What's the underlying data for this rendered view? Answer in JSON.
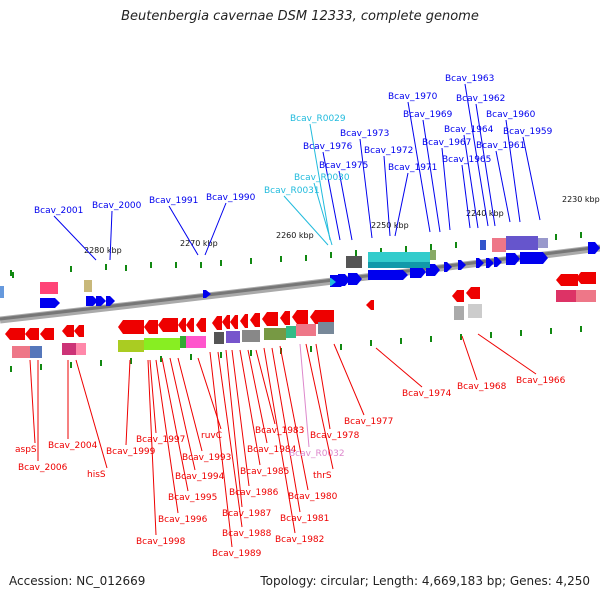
{
  "title": "Beutenbergia cavernae DSM 12333, complete genome",
  "footer": {
    "accession": "Accession: NC_012669",
    "summary": "Topology: circular; Length: 4,669,183 bp; Genes: 4,250"
  },
  "colors": {
    "forward_cds": "#0000ee",
    "reverse_cds": "#ee0000",
    "trna_forward": "#22bbdd",
    "trna_reverse": "#dd88cc",
    "backbone": "#777777",
    "tick": "#118811"
  },
  "scale_labels": [
    {
      "id": "kbp-2280",
      "text": "2280 kbp"
    },
    {
      "id": "kbp-2270",
      "text": "2270 kbp"
    },
    {
      "id": "kbp-2260",
      "text": "2260 kbp"
    },
    {
      "id": "kbp-2250",
      "text": "2250 kbp"
    },
    {
      "id": "kbp-2240",
      "text": "2240 kbp"
    },
    {
      "id": "kbp-2230",
      "text": "2230 kbp"
    }
  ],
  "top_labels": [
    {
      "id": "bcav-2001",
      "text": "Bcav_2001",
      "kind": "cds"
    },
    {
      "id": "bcav-2000",
      "text": "Bcav_2000",
      "kind": "cds"
    },
    {
      "id": "bcav-1991",
      "text": "Bcav_1991",
      "kind": "cds"
    },
    {
      "id": "bcav-1990",
      "text": "Bcav_1990",
      "kind": "cds"
    },
    {
      "id": "bcav-r0029",
      "text": "Bcav_R0029",
      "kind": "rna"
    },
    {
      "id": "bcav-1976",
      "text": "Bcav_1976",
      "kind": "cds"
    },
    {
      "id": "bcav-1975",
      "text": "Bcav_1975",
      "kind": "cds"
    },
    {
      "id": "bcav-r0030",
      "text": "Bcav_R0030",
      "kind": "rna"
    },
    {
      "id": "bcav-r0031",
      "text": "Bcav_R0031",
      "kind": "rna"
    },
    {
      "id": "bcav-1973",
      "text": "Bcav_1973",
      "kind": "cds"
    },
    {
      "id": "bcav-1972",
      "text": "Bcav_1972",
      "kind": "cds"
    },
    {
      "id": "bcav-1971",
      "text": "Bcav_1971",
      "kind": "cds"
    },
    {
      "id": "bcav-1970",
      "text": "Bcav_1970",
      "kind": "cds"
    },
    {
      "id": "bcav-1969",
      "text": "Bcav_1969",
      "kind": "cds"
    },
    {
      "id": "bcav-1967",
      "text": "Bcav_1967",
      "kind": "cds"
    },
    {
      "id": "bcav-1965",
      "text": "Bcav_1965",
      "kind": "cds"
    },
    {
      "id": "bcav-1964",
      "text": "Bcav_1964",
      "kind": "cds"
    },
    {
      "id": "bcav-1963",
      "text": "Bcav_1963",
      "kind": "cds"
    },
    {
      "id": "bcav-1962",
      "text": "Bcav_1962",
      "kind": "cds"
    },
    {
      "id": "bcav-1961",
      "text": "Bcav_1961",
      "kind": "cds"
    },
    {
      "id": "bcav-1960",
      "text": "Bcav_1960",
      "kind": "cds"
    },
    {
      "id": "bcav-1959",
      "text": "Bcav_1959",
      "kind": "cds"
    }
  ],
  "bottom_labels": [
    {
      "id": "asps",
      "text": "aspS",
      "kind": "cds"
    },
    {
      "id": "bcav-2006",
      "text": "Bcav_2006",
      "kind": "cds"
    },
    {
      "id": "bcav-2004",
      "text": "Bcav_2004",
      "kind": "cds"
    },
    {
      "id": "hiss",
      "text": "hisS",
      "kind": "cds"
    },
    {
      "id": "bcav-1999",
      "text": "Bcav_1999",
      "kind": "cds"
    },
    {
      "id": "bcav-1997",
      "text": "Bcav_1997",
      "kind": "cds"
    },
    {
      "id": "bcav-1998",
      "text": "Bcav_1998",
      "kind": "cds"
    },
    {
      "id": "bcav-1996",
      "text": "Bcav_1996",
      "kind": "cds"
    },
    {
      "id": "bcav-1995",
      "text": "Bcav_1995",
      "kind": "cds"
    },
    {
      "id": "bcav-1994",
      "text": "Bcav_1994",
      "kind": "cds"
    },
    {
      "id": "bcav-1993",
      "text": "Bcav_1993",
      "kind": "cds"
    },
    {
      "id": "ruvc",
      "text": "ruvC",
      "kind": "cds"
    },
    {
      "id": "bcav-1989",
      "text": "Bcav_1989",
      "kind": "cds"
    },
    {
      "id": "bcav-1988",
      "text": "Bcav_1988",
      "kind": "cds"
    },
    {
      "id": "bcav-1987",
      "text": "Bcav_1987",
      "kind": "cds"
    },
    {
      "id": "bcav-1986",
      "text": "Bcav_1986",
      "kind": "cds"
    },
    {
      "id": "bcav-1985",
      "text": "Bcav_1985",
      "kind": "cds"
    },
    {
      "id": "bcav-1984",
      "text": "Bcav_1984",
      "kind": "cds"
    },
    {
      "id": "bcav-1983",
      "text": "Bcav_1983",
      "kind": "cds"
    },
    {
      "id": "bcav-1982",
      "text": "Bcav_1982",
      "kind": "cds"
    },
    {
      "id": "bcav-1981",
      "text": "Bcav_1981",
      "kind": "cds"
    },
    {
      "id": "bcav-1980",
      "text": "Bcav_1980",
      "kind": "cds"
    },
    {
      "id": "bcav-r0032",
      "text": "Bcav_R0032",
      "kind": "rna"
    },
    {
      "id": "thrs",
      "text": "thrS",
      "kind": "cds"
    },
    {
      "id": "bcav-1978",
      "text": "Bcav_1978",
      "kind": "cds"
    },
    {
      "id": "bcav-1977",
      "text": "Bcav_1977",
      "kind": "cds"
    },
    {
      "id": "bcav-1974",
      "text": "Bcav_1974",
      "kind": "cds"
    },
    {
      "id": "bcav-1968",
      "text": "Bcav_1968",
      "kind": "cds"
    },
    {
      "id": "bcav-1966",
      "text": "Bcav_1966",
      "kind": "cds"
    }
  ]
}
